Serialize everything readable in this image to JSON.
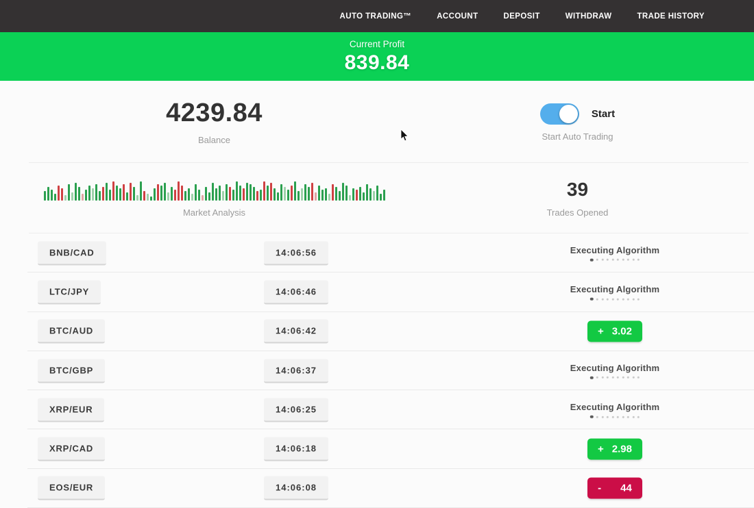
{
  "nav": {
    "items": [
      "AUTO TRADING™",
      "ACCOUNT",
      "DEPOSIT",
      "WITHDRAW",
      "TRADE HISTORY"
    ]
  },
  "banner": {
    "label": "Current Profit",
    "value": "839.84"
  },
  "stats": {
    "balance": {
      "value": "4239.84",
      "label": "Balance"
    },
    "auto_trading": {
      "toggle_label": "Start",
      "label": "Start Auto Trading",
      "toggle_on": true
    },
    "market": {
      "label": "Market Analysis"
    },
    "trades": {
      "value": "39",
      "label": "Trades Opened"
    }
  },
  "market_bars": [
    [
      14,
      "g"
    ],
    [
      20,
      "g"
    ],
    [
      16,
      "g"
    ],
    [
      10,
      "g"
    ],
    [
      22,
      "r"
    ],
    [
      18,
      "r"
    ],
    [
      8,
      "lg"
    ],
    [
      24,
      "g"
    ],
    [
      12,
      "lg"
    ],
    [
      26,
      "g"
    ],
    [
      20,
      "g"
    ],
    [
      10,
      "lr"
    ],
    [
      16,
      "g"
    ],
    [
      22,
      "g"
    ],
    [
      18,
      "lg"
    ],
    [
      24,
      "g"
    ],
    [
      14,
      "g"
    ],
    [
      20,
      "r"
    ],
    [
      26,
      "g"
    ],
    [
      16,
      "g"
    ],
    [
      28,
      "r"
    ],
    [
      22,
      "g"
    ],
    [
      18,
      "g"
    ],
    [
      24,
      "r"
    ],
    [
      12,
      "g"
    ],
    [
      26,
      "r"
    ],
    [
      20,
      "g"
    ],
    [
      8,
      "lg"
    ],
    [
      28,
      "g"
    ],
    [
      14,
      "r"
    ],
    [
      10,
      "lg"
    ],
    [
      6,
      "g"
    ],
    [
      18,
      "g"
    ],
    [
      24,
      "r"
    ],
    [
      22,
      "g"
    ],
    [
      26,
      "g"
    ],
    [
      12,
      "lg"
    ],
    [
      20,
      "g"
    ],
    [
      16,
      "r"
    ],
    [
      28,
      "r"
    ],
    [
      22,
      "r"
    ],
    [
      14,
      "g"
    ],
    [
      18,
      "g"
    ],
    [
      10,
      "lg"
    ],
    [
      24,
      "g"
    ],
    [
      16,
      "g"
    ],
    [
      8,
      "lr"
    ],
    [
      20,
      "g"
    ],
    [
      12,
      "g"
    ],
    [
      26,
      "g"
    ],
    [
      18,
      "g"
    ],
    [
      22,
      "g"
    ],
    [
      14,
      "lg"
    ],
    [
      24,
      "g"
    ],
    [
      20,
      "r"
    ],
    [
      16,
      "g"
    ],
    [
      28,
      "g"
    ],
    [
      22,
      "g"
    ],
    [
      18,
      "r"
    ],
    [
      26,
      "g"
    ],
    [
      24,
      "g"
    ],
    [
      20,
      "g"
    ],
    [
      14,
      "r"
    ],
    [
      16,
      "g"
    ],
    [
      28,
      "r"
    ],
    [
      22,
      "g"
    ],
    [
      26,
      "r"
    ],
    [
      18,
      "g"
    ],
    [
      12,
      "g"
    ],
    [
      24,
      "g"
    ],
    [
      20,
      "lg"
    ],
    [
      16,
      "g"
    ],
    [
      22,
      "r"
    ],
    [
      28,
      "g"
    ],
    [
      14,
      "g"
    ],
    [
      18,
      "lg"
    ],
    [
      24,
      "g"
    ],
    [
      20,
      "g"
    ],
    [
      26,
      "r"
    ],
    [
      12,
      "lr"
    ],
    [
      22,
      "g"
    ],
    [
      16,
      "g"
    ],
    [
      18,
      "g"
    ],
    [
      10,
      "lg"
    ],
    [
      24,
      "r"
    ],
    [
      20,
      "g"
    ],
    [
      14,
      "g"
    ],
    [
      26,
      "g"
    ],
    [
      22,
      "g"
    ],
    [
      8,
      "lg"
    ],
    [
      18,
      "g"
    ],
    [
      16,
      "r"
    ],
    [
      20,
      "g"
    ],
    [
      12,
      "g"
    ],
    [
      24,
      "g"
    ],
    [
      18,
      "g"
    ],
    [
      14,
      "lg"
    ],
    [
      22,
      "g"
    ],
    [
      10,
      "g"
    ],
    [
      16,
      "g"
    ]
  ],
  "table": {
    "executing_label": "Executing Algorithm",
    "executing_dots": 10,
    "rows": [
      {
        "pair": "BNB/CAD",
        "time": "14:06:56",
        "status": "executing"
      },
      {
        "pair": "LTC/JPY",
        "time": "14:06:46",
        "status": "executing"
      },
      {
        "pair": "BTC/AUD",
        "time": "14:06:42",
        "status": "profit",
        "sign": "+",
        "value": "3.02"
      },
      {
        "pair": "BTC/GBP",
        "time": "14:06:37",
        "status": "executing"
      },
      {
        "pair": "XRP/EUR",
        "time": "14:06:25",
        "status": "executing"
      },
      {
        "pair": "XRP/CAD",
        "time": "14:06:18",
        "status": "profit",
        "sign": "+",
        "value": "2.98"
      },
      {
        "pair": "EOS/EUR",
        "time": "14:06:08",
        "status": "loss",
        "sign": "-",
        "value": "44"
      }
    ]
  },
  "colors": {
    "nav_bg": "#343132",
    "banner_green": "#0bd155",
    "profit_green": "#13c943",
    "loss_red": "#cb0e47",
    "toggle_blue": "#54aeec",
    "bar_green": "#2ba04f",
    "bar_red": "#cf4143",
    "bar_light_green": "#9fd2ab",
    "bar_light_red": "#e0a3a3"
  }
}
